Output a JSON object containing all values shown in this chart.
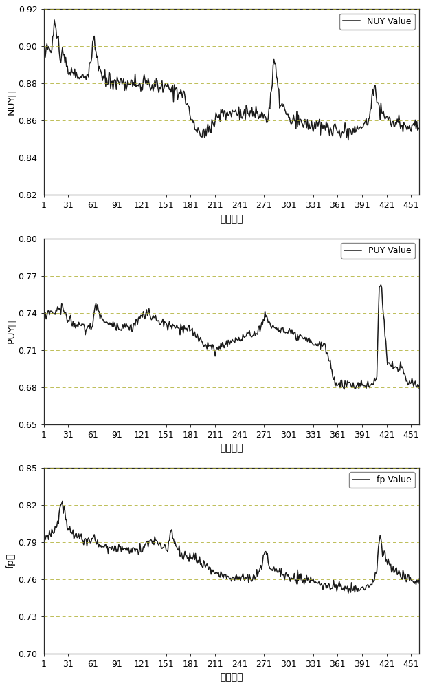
{
  "nuy_ylim": [
    0.82,
    0.92
  ],
  "nuy_yticks": [
    0.82,
    0.84,
    0.86,
    0.88,
    0.9,
    0.92
  ],
  "nuy_ylabel": "NUY值",
  "nuy_legend": "NUY Value",
  "puy_ylim": [
    0.65,
    0.8
  ],
  "puy_yticks": [
    0.65,
    0.68,
    0.71,
    0.74,
    0.77,
    0.8
  ],
  "puy_ylabel": "PUY值",
  "puy_legend": "PUY Value",
  "fp_ylim": [
    0.7,
    0.85
  ],
  "fp_yticks": [
    0.7,
    0.73,
    0.76,
    0.79,
    0.82,
    0.85
  ],
  "fp_ylabel": "fp值",
  "fp_legend": "fp Value",
  "xlabel": "迭代次数",
  "xticks": [
    1,
    31,
    61,
    91,
    121,
    151,
    181,
    211,
    241,
    271,
    301,
    331,
    361,
    391,
    421,
    451
  ],
  "n_points": 461,
  "line_color": "#1a1a1a",
  "grid_color": "#a8a820",
  "bg_color": "#ffffff",
  "line_width": 1.1,
  "font_size": 9,
  "legend_font_size": 9
}
